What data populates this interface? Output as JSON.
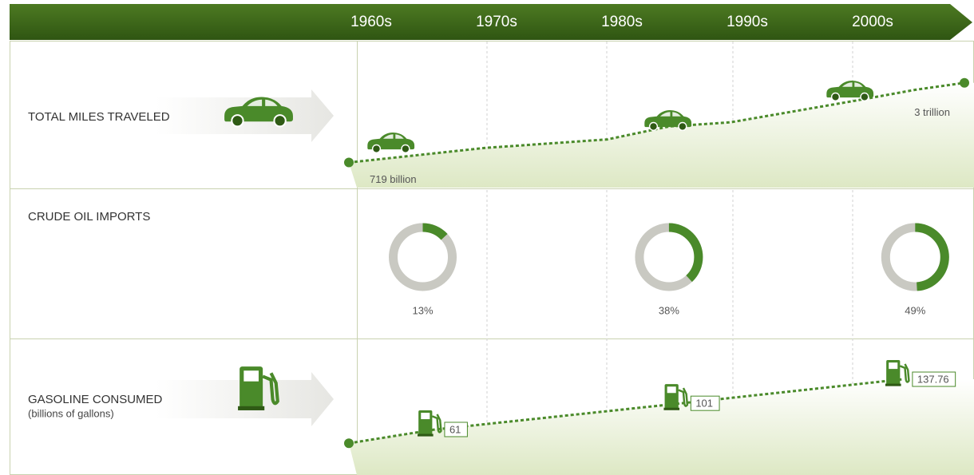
{
  "timeline": [
    "1960s",
    "1970s",
    "1980s",
    "1990s",
    "2000s"
  ],
  "chart_data": [
    {
      "type": "line",
      "title": "TOTAL MILES TRAVELED",
      "color": "#4a8a2a",
      "x": [
        1959,
        1970,
        1980,
        1985,
        1990,
        2000,
        2005,
        2009
      ],
      "values": [
        719,
        1135,
        1380,
        1750,
        1870,
        2480,
        2800,
        3000
      ],
      "value_labels": [
        "719 billion",
        null,
        null,
        null,
        null,
        null,
        null,
        "3 trillion"
      ],
      "xlim": [
        1959,
        2009
      ],
      "ylim": [
        0,
        4000
      ]
    },
    {
      "type": "donut",
      "title": "CRUDE OIL IMPORTS",
      "color": "#4a8a2a",
      "x": [
        1965,
        1985,
        2005
      ],
      "values": [
        13,
        38,
        49
      ],
      "value_labels": [
        "13%",
        "38%",
        "49%"
      ],
      "xlim": [
        1959,
        2009
      ]
    },
    {
      "type": "line",
      "title": "GASOLINE CONSUMED",
      "subtitle": "(billions of gallons)",
      "color": "#4a8a2a",
      "x": [
        1959,
        1966,
        1986,
        2004
      ],
      "values": [
        40,
        61,
        101,
        137.76
      ],
      "value_labels": [
        null,
        "61",
        "101",
        "137.76"
      ],
      "xlim": [
        1959,
        2009
      ],
      "ylim": [
        0,
        200
      ]
    }
  ]
}
